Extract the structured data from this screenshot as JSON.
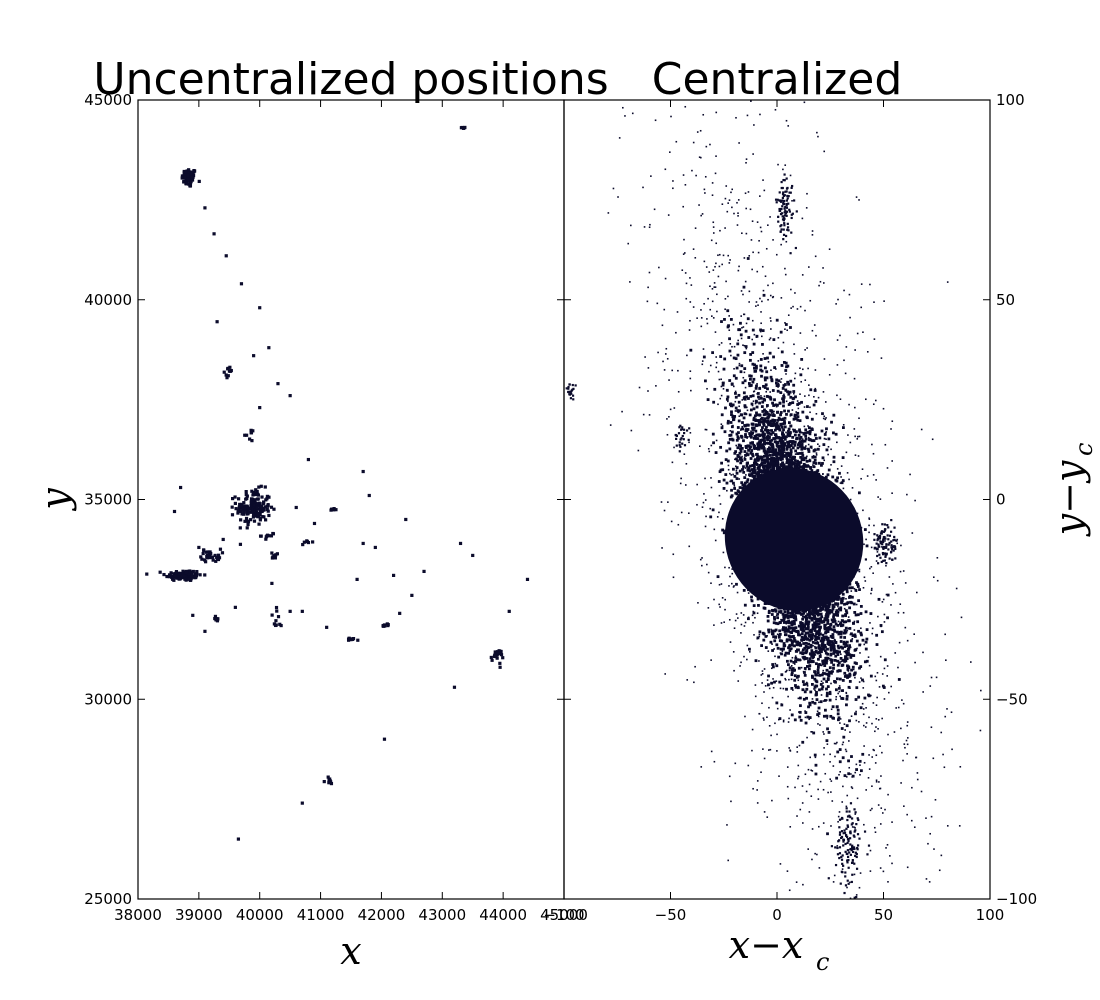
{
  "chart_data": [
    {
      "type": "scatter",
      "title": "Uncentralized positions",
      "xlabel": "x",
      "ylabel": "y",
      "xlim": [
        38000,
        45000
      ],
      "ylim": [
        25000,
        45000
      ],
      "xticks": [
        "38000",
        "39000",
        "40000",
        "41000",
        "42000",
        "43000",
        "44000",
        "45000"
      ],
      "yticks": [
        "25000",
        "30000",
        "35000",
        "40000",
        "45000"
      ],
      "marker_color": "#0b0b2b",
      "clusters": [
        {
          "x": 38840,
          "y": 43050,
          "sx": 60,
          "sy": 120,
          "n": 60
        },
        {
          "x": 38750,
          "y": 33100,
          "sx": 150,
          "sy": 70,
          "n": 110
        },
        {
          "x": 39900,
          "y": 34800,
          "sx": 140,
          "sy": 220,
          "n": 160
        },
        {
          "x": 39200,
          "y": 33600,
          "sx": 80,
          "sy": 80,
          "n": 30
        },
        {
          "x": 43900,
          "y": 31100,
          "sx": 50,
          "sy": 70,
          "n": 25
        },
        {
          "x": 41130,
          "y": 27950,
          "sx": 40,
          "sy": 40,
          "n": 12
        },
        {
          "x": 43350,
          "y": 44300,
          "sx": 30,
          "sy": 10,
          "n": 5
        },
        {
          "x": 41500,
          "y": 31500,
          "sx": 40,
          "sy": 20,
          "n": 8
        },
        {
          "x": 42050,
          "y": 31850,
          "sx": 40,
          "sy": 20,
          "n": 8
        },
        {
          "x": 40150,
          "y": 34100,
          "sx": 60,
          "sy": 40,
          "n": 10
        },
        {
          "x": 39500,
          "y": 38200,
          "sx": 40,
          "sy": 60,
          "n": 10
        },
        {
          "x": 39800,
          "y": 36600,
          "sx": 40,
          "sy": 60,
          "n": 8
        },
        {
          "x": 40800,
          "y": 33900,
          "sx": 40,
          "sy": 40,
          "n": 6
        },
        {
          "x": 40250,
          "y": 33600,
          "sx": 40,
          "sy": 40,
          "n": 8
        },
        {
          "x": 40300,
          "y": 32000,
          "sx": 60,
          "sy": 140,
          "n": 10
        },
        {
          "x": 39300,
          "y": 32000,
          "sx": 40,
          "sy": 40,
          "n": 8
        },
        {
          "x": 41200,
          "y": 34750,
          "sx": 30,
          "sy": 20,
          "n": 6
        }
      ],
      "scatter_points": [
        [
          39100,
          42300
        ],
        [
          39250,
          41650
        ],
        [
          39450,
          41100
        ],
        [
          39700,
          40400
        ],
        [
          39300,
          39450
        ],
        [
          40000,
          39800
        ],
        [
          39900,
          38600
        ],
        [
          40150,
          38800
        ],
        [
          40300,
          37900
        ],
        [
          40000,
          37300
        ],
        [
          40500,
          37600
        ],
        [
          40800,
          36000
        ],
        [
          41700,
          35700
        ],
        [
          41800,
          35100
        ],
        [
          42400,
          34500
        ],
        [
          43300,
          33900
        ],
        [
          43500,
          33600
        ],
        [
          44400,
          33000
        ],
        [
          44100,
          32200
        ],
        [
          42700,
          33200
        ],
        [
          42200,
          33100
        ],
        [
          41600,
          33000
        ],
        [
          42500,
          32600
        ],
        [
          42300,
          32150
        ],
        [
          41100,
          31800
        ],
        [
          40700,
          32200
        ],
        [
          40500,
          32200
        ],
        [
          39400,
          34000
        ],
        [
          39000,
          33800
        ],
        [
          38600,
          34700
        ],
        [
          38700,
          35300
        ],
        [
          38900,
          32100
        ],
        [
          39100,
          31700
        ],
        [
          39600,
          32300
        ],
        [
          40200,
          32900
        ],
        [
          43200,
          30300
        ],
        [
          42050,
          29000
        ],
        [
          40700,
          27400
        ],
        [
          39650,
          26500
        ],
        [
          43950,
          30800
        ],
        [
          40900,
          34400
        ],
        [
          40600,
          34800
        ],
        [
          41700,
          33900
        ],
        [
          41900,
          33800
        ]
      ]
    },
    {
      "type": "scatter",
      "title": "Centralized",
      "xlabel": "x−x",
      "xlabel_sub": "c",
      "ylabel": "y−y",
      "ylabel_sub": "c",
      "xlim": [
        -100,
        100
      ],
      "ylim": [
        -100,
        100
      ],
      "xticks": [
        "−100",
        "−50",
        "0",
        "50",
        "100"
      ],
      "yticks": [
        "−100",
        "−50",
        "0",
        "50",
        "100"
      ],
      "marker_color": "#0b0b2b",
      "main_distribution": {
        "cx": 8,
        "cy": -10,
        "major_sd": 20,
        "minor_sd": 9.5,
        "angle_deg": 62,
        "n": 5200
      },
      "halo_distribution": {
        "cx": 8,
        "cy": -10,
        "major_sd": 55,
        "minor_sd": 24,
        "angle_deg": 65,
        "n": 1700
      },
      "clusters": [
        {
          "x": 4,
          "y": 73,
          "sx": 2,
          "sy": 4,
          "n": 90
        },
        {
          "x": 51,
          "y": -11,
          "sx": 3,
          "sy": 2.5,
          "n": 90
        },
        {
          "x": 34,
          "y": -87,
          "sx": 3,
          "sy": 5,
          "n": 120
        },
        {
          "x": -97,
          "y": 27,
          "sx": 1.2,
          "sy": 1.2,
          "n": 20
        },
        {
          "x": -45,
          "y": 15,
          "sx": 2,
          "sy": 2,
          "n": 25
        }
      ]
    }
  ]
}
